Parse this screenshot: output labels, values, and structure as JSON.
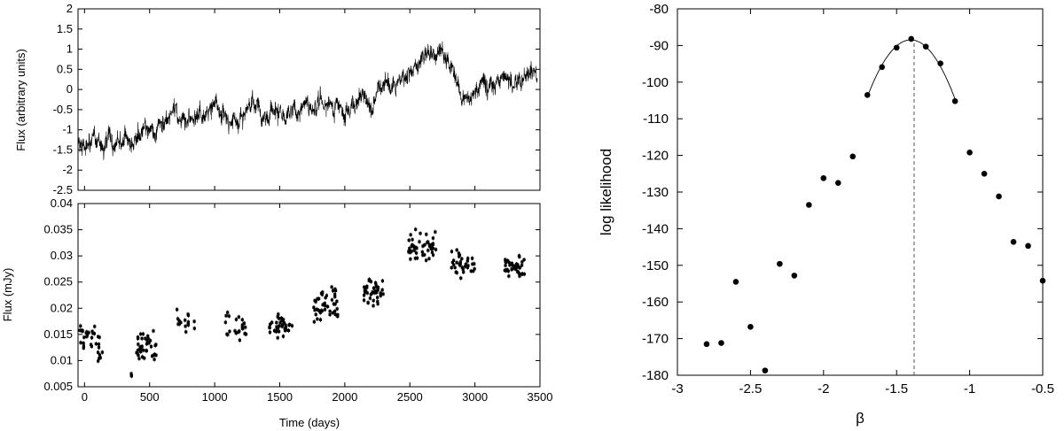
{
  "chart_data": [
    {
      "type": "line",
      "title": "",
      "xlabel": "",
      "ylabel": "Flux (arbitrary units)",
      "xlim": [
        -50,
        3500
      ],
      "ylim": [
        -2.5,
        2
      ],
      "yticks": [
        -2.5,
        -2,
        -1.5,
        -1,
        -0.5,
        0,
        0.5,
        1,
        1.5,
        2
      ],
      "ytick_labels": [
        "-2.5",
        "-2",
        "-1.5",
        "-1",
        "-0.5",
        "0",
        "0.5",
        "1",
        "1.5",
        "2"
      ],
      "series": [
        {
          "color": "#000000",
          "x": [
            -50,
            100,
            200,
            300,
            400,
            500,
            600,
            700,
            800,
            900,
            1000,
            1100,
            1200,
            1300,
            1400,
            1500,
            1600,
            1700,
            1800,
            1900,
            2000,
            2100,
            2200,
            2300,
            2400,
            2500,
            2600,
            2700,
            2800,
            2900,
            3000,
            3100,
            3200,
            3300,
            3400,
            3480
          ],
          "values": [
            -1.3,
            -1.4,
            -1.35,
            -1.25,
            -1.2,
            -1.0,
            -1.0,
            -0.55,
            -0.75,
            -0.6,
            -0.45,
            -0.8,
            -0.55,
            -0.45,
            -0.6,
            -0.75,
            -0.55,
            -0.45,
            -0.5,
            -0.35,
            -0.6,
            -0.15,
            -0.25,
            0.05,
            0.2,
            0.5,
            0.8,
            0.9,
            0.6,
            -0.15,
            0.0,
            0.1,
            0.35,
            0.2,
            0.4,
            0.2
          ]
        }
      ]
    },
    {
      "type": "scatter",
      "title": "",
      "xlabel": "Time (days)",
      "ylabel": "Flux (mJy)",
      "xlim": [
        -50,
        3500
      ],
      "ylim": [
        0.005,
        0.04
      ],
      "xticks": [
        0,
        500,
        1000,
        1500,
        2000,
        2500,
        3000,
        3500
      ],
      "xtick_labels": [
        "0",
        "500",
        "1000",
        "1500",
        "2000",
        "2500",
        "3000",
        "3500"
      ],
      "yticks": [
        0.005,
        0.01,
        0.015,
        0.02,
        0.025,
        0.03,
        0.035,
        0.04
      ],
      "ytick_labels": [
        "0.005",
        "0.01",
        "0.015",
        "0.02",
        "0.025",
        "0.03",
        "0.035",
        "0.04"
      ],
      "series": [
        {
          "color": "#000000",
          "clusters": [
            {
              "x": [
                -40,
                130
              ],
              "y_center": 0.0145,
              "y_spread": 0.0025,
              "n": 28
            },
            {
              "x": [
                100,
                140
              ],
              "y_center": 0.011,
              "y_spread": 0.0015,
              "n": 6
            },
            {
              "x": [
                350,
                370
              ],
              "y_center": 0.0075,
              "y_spread": 0.0005,
              "n": 3
            },
            {
              "x": [
                400,
                550
              ],
              "y_center": 0.0125,
              "y_spread": 0.003,
              "n": 40
            },
            {
              "x": [
                700,
                850
              ],
              "y_center": 0.017,
              "y_spread": 0.002,
              "n": 16
            },
            {
              "x": [
                1080,
                1250
              ],
              "y_center": 0.0165,
              "y_spread": 0.0025,
              "n": 24
            },
            {
              "x": [
                1420,
                1600
              ],
              "y_center": 0.0165,
              "y_spread": 0.002,
              "n": 36
            },
            {
              "x": [
                1760,
                1950
              ],
              "y_center": 0.021,
              "y_spread": 0.003,
              "n": 44
            },
            {
              "x": [
                2140,
                2300
              ],
              "y_center": 0.023,
              "y_spread": 0.0025,
              "n": 38
            },
            {
              "x": [
                2480,
                2700
              ],
              "y_center": 0.0315,
              "y_spread": 0.0025,
              "n": 48
            },
            {
              "x": [
                2820,
                3000
              ],
              "y_center": 0.0285,
              "y_spread": 0.0025,
              "n": 34
            },
            {
              "x": [
                3220,
                3380
              ],
              "y_center": 0.028,
              "y_spread": 0.0025,
              "n": 38
            }
          ]
        }
      ]
    },
    {
      "type": "scatter",
      "title": "",
      "xlabel": "β",
      "ylabel": "log likelihood",
      "xlim": [
        -3,
        -0.5
      ],
      "ylim": [
        -180,
        -80
      ],
      "xticks": [
        -3,
        -2.5,
        -2,
        -1.5,
        -1,
        -0.5
      ],
      "xtick_labels": [
        "-3",
        "-2.5",
        "-2",
        "-1.5",
        "-1",
        "-0.5"
      ],
      "yticks": [
        -180,
        -170,
        -160,
        -150,
        -140,
        -130,
        -120,
        -110,
        -100,
        -90,
        -80
      ],
      "ytick_labels": [
        "-180",
        "-170",
        "-160",
        "-150",
        "-140",
        "-130",
        "-120",
        "-110",
        "-100",
        "-90",
        "-80"
      ],
      "points": {
        "x": [
          -2.8,
          -2.7,
          -2.6,
          -2.5,
          -2.4,
          -2.3,
          -2.2,
          -2.1,
          -2.0,
          -1.9,
          -1.8,
          -1.7,
          -1.6,
          -1.5,
          -1.4,
          -1.3,
          -1.2,
          -1.1,
          -1.0,
          -0.9,
          -0.8,
          -0.7,
          -0.6,
          -0.5
        ],
        "y": [
          -171.5,
          -171.2,
          -154.5,
          -166.8,
          -178.7,
          -149.6,
          -152.8,
          -133.5,
          -126.2,
          -127.5,
          -120.3,
          -103.5,
          -95.9,
          -90.6,
          -88.2,
          -90.3,
          -94.9,
          -105.2,
          -119.2,
          -125.0,
          -131.2,
          -143.6,
          -144.7,
          -154.2
        ]
      },
      "fit": {
        "x": [
          -1.7,
          -1.6,
          -1.5,
          -1.4,
          -1.3,
          -1.2,
          -1.1
        ],
        "y": [
          -103.5,
          -95.9,
          -90.6,
          -88.2,
          -90.3,
          -94.9,
          -105.2
        ]
      },
      "peak_x": -1.38
    }
  ]
}
